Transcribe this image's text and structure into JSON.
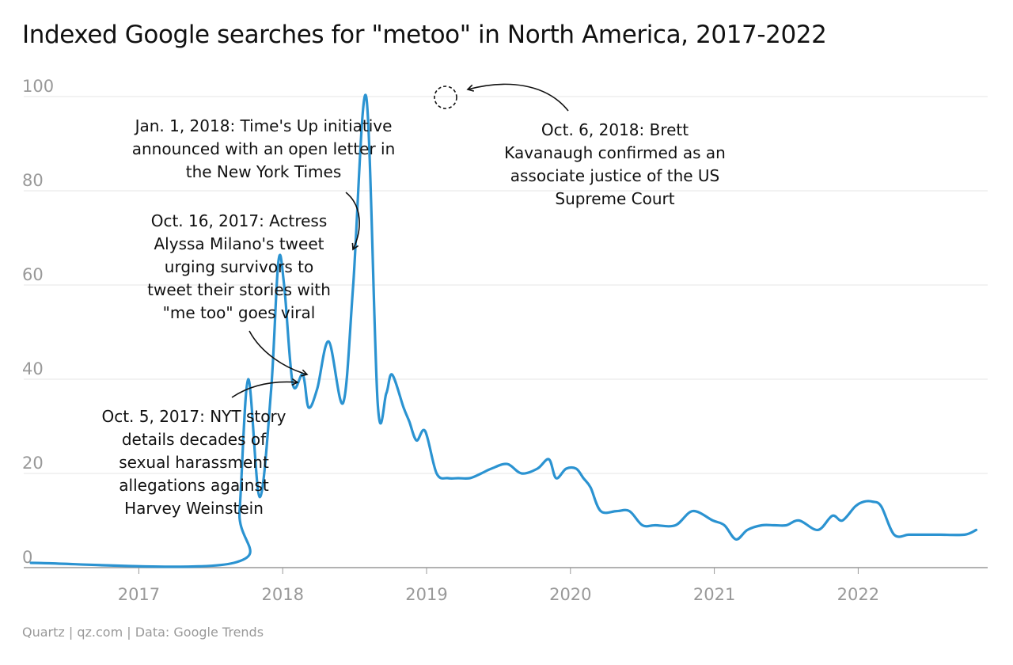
{
  "title": "Indexed Google searches for \"metoo\" in North America, 2017-2022",
  "footer": "Quartz | qz.com | Data: Google Trends",
  "colors": {
    "line": "#2b93d1",
    "grid": "#e6e6e6",
    "axis": "#999999",
    "tick_text": "#999999"
  },
  "annotations": [
    {
      "id": "weinstein",
      "lines": [
        "Oct. 5, 2017: NYT story",
        "details decades of",
        "sexual harassment",
        "allegations against",
        "Harvey Weinstein"
      ]
    },
    {
      "id": "milano",
      "lines": [
        "Oct. 16, 2017: Actress",
        "Alyssa Milano's tweet",
        "urging survivors to",
        "tweet their stories with",
        "\"me too\" goes viral"
      ]
    },
    {
      "id": "timesup",
      "lines": [
        "Jan. 1, 2018: Time's Up initiative",
        "announced with an open letter in",
        "the New York Times"
      ]
    },
    {
      "id": "kavanaugh",
      "lines": [
        "Oct. 6, 2018: Brett",
        "Kavanaugh confirmed as an",
        "associate justice of the US",
        "Supreme Court"
      ]
    }
  ],
  "chart_data": {
    "type": "line",
    "title": "Indexed Google searches for \"metoo\" in North America, 2017-2022",
    "xlabel": "",
    "ylabel": "",
    "ylim": [
      0,
      100
    ],
    "xlim": [
      2016.2,
      2022.9
    ],
    "yticks": [
      0,
      20,
      40,
      60,
      80,
      100
    ],
    "xticks": [
      2017,
      2018,
      2019,
      2020,
      2021,
      2022
    ],
    "grid": true,
    "series": [
      {
        "x": [
          2016.25,
          2017.66,
          2017.7,
          2017.76,
          2017.84,
          2017.92,
          2017.97,
          2018.01,
          2018.07,
          2018.14,
          2018.18,
          2018.24,
          2018.32,
          2018.42,
          2018.49,
          2018.58,
          2018.66,
          2018.72,
          2018.76,
          2018.84,
          2018.88,
          2018.93,
          2018.99,
          2019.07,
          2019.15,
          2019.22,
          2019.3,
          2019.38,
          2019.45,
          2019.56,
          2019.66,
          2019.77,
          2019.85,
          2019.9,
          2019.97,
          2020.04,
          2020.09,
          2020.14,
          2020.21,
          2020.32,
          2020.41,
          2020.5,
          2020.59,
          2020.73,
          2020.85,
          2020.99,
          2021.07,
          2021.15,
          2021.23,
          2021.33,
          2021.42,
          2021.5,
          2021.59,
          2021.72,
          2021.82,
          2021.89,
          2021.98,
          2022.04,
          2022.1,
          2022.16,
          2022.25,
          2022.35,
          2022.43,
          2022.49,
          2022.57,
          2022.74,
          2022.82
        ],
        "values": [
          1,
          1,
          12,
          40,
          15,
          38,
          65,
          60,
          39,
          41,
          34,
          38,
          48,
          35,
          60,
          100,
          35,
          37,
          41,
          34,
          31,
          27,
          29,
          20,
          19,
          19,
          19,
          20,
          21,
          22,
          20,
          21,
          23,
          19,
          21,
          21,
          19,
          17,
          12,
          12,
          12,
          9,
          9,
          9,
          12,
          10,
          9,
          6,
          8,
          9,
          9,
          9,
          10,
          8,
          11,
          10,
          13,
          14,
          14,
          13,
          7,
          7,
          7,
          7,
          7,
          7,
          8
        ]
      }
    ]
  }
}
